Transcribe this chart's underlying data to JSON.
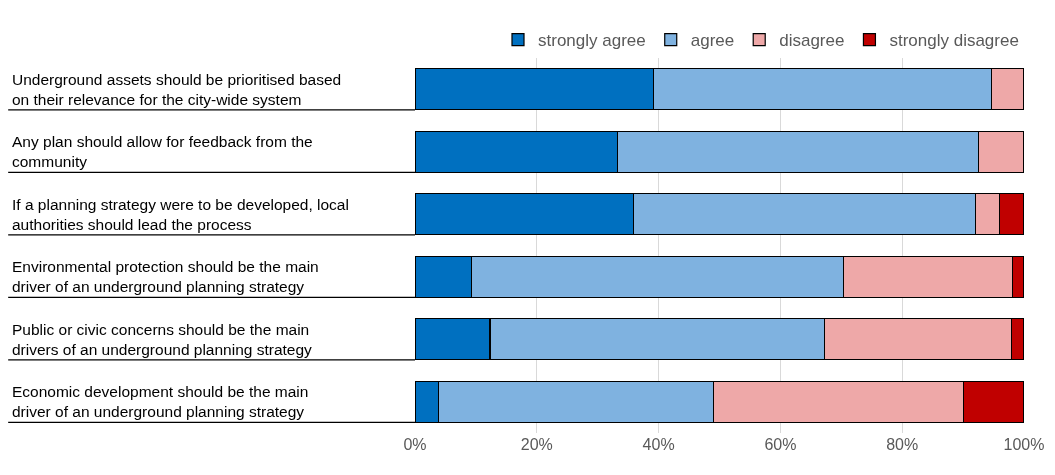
{
  "chart_data": {
    "type": "bar",
    "orientation": "horizontal",
    "stacked": true,
    "categories": [
      "Underground assets should be prioritised based\non their relevance for the city-wide system",
      "Any plan should allow for feedback from the\ncommunity",
      "If a planning strategy were to be developed, local\nauthorities should lead the process",
      "Environmental protection should be the main\ndriver of an underground planning strategy",
      "Public or civic concerns should be the main\ndrivers of an underground planning strategy",
      "Economic development should be the main\ndriver of an underground planning strategy"
    ],
    "series": [
      {
        "name": "strongly agree",
        "color": "#0070c0",
        "values": [
          39.2,
          33.3,
          35.9,
          9.3,
          12.3,
          3.8
        ]
      },
      {
        "name": "agree",
        "color": "#7fb2e0",
        "values": [
          55.4,
          59.2,
          56.1,
          61.0,
          55.0,
          45.2
        ]
      },
      {
        "name": "disagree",
        "color": "#eea8a8",
        "values": [
          5.4,
          7.5,
          4.0,
          27.8,
          30.6,
          41.1
        ]
      },
      {
        "name": "strongly disagree",
        "color": "#c00000",
        "values": [
          null,
          null,
          4.0,
          1.9,
          2.1,
          9.9
        ]
      }
    ],
    "xlim": [
      0,
      100
    ],
    "xticks": [
      {
        "value": 0,
        "label": "0%"
      },
      {
        "value": 20,
        "label": "20%"
      },
      {
        "value": 40,
        "label": "40%"
      },
      {
        "value": 60,
        "label": "60%"
      },
      {
        "value": 80,
        "label": "80%"
      },
      {
        "value": 100,
        "label": "100%"
      }
    ],
    "grid": "x",
    "legend": "top"
  }
}
